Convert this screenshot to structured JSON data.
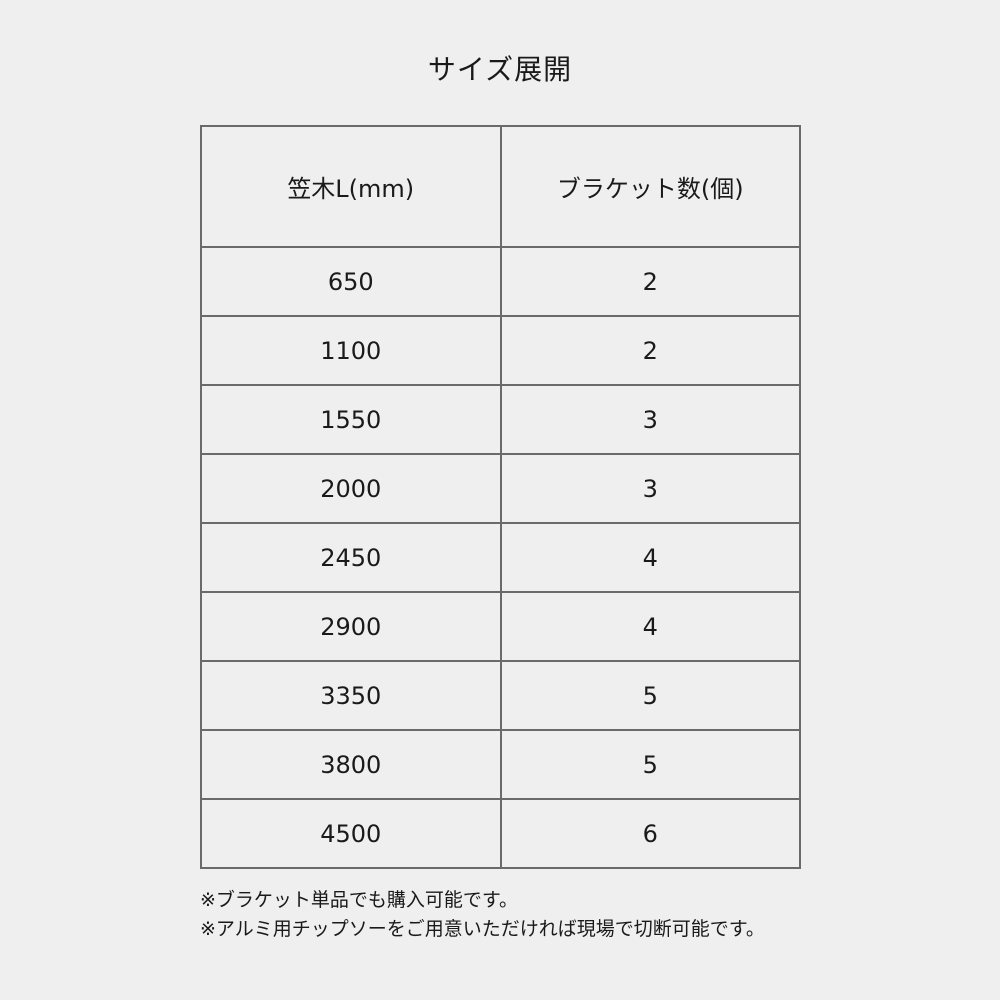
{
  "title": "サイズ展開",
  "table": {
    "headers": [
      "笠木L(mm)",
      "ブラケット数(個)"
    ],
    "rows": [
      [
        "650",
        "2"
      ],
      [
        "1100",
        "2"
      ],
      [
        "1550",
        "3"
      ],
      [
        "2000",
        "3"
      ],
      [
        "2450",
        "4"
      ],
      [
        "2900",
        "4"
      ],
      [
        "3350",
        "5"
      ],
      [
        "3800",
        "5"
      ],
      [
        "4500",
        "6"
      ]
    ]
  },
  "notes": [
    "※ブラケット単品でも購入可能です。",
    "※アルミ用チップソーをご用意いただければ現場で切断可能です。"
  ]
}
